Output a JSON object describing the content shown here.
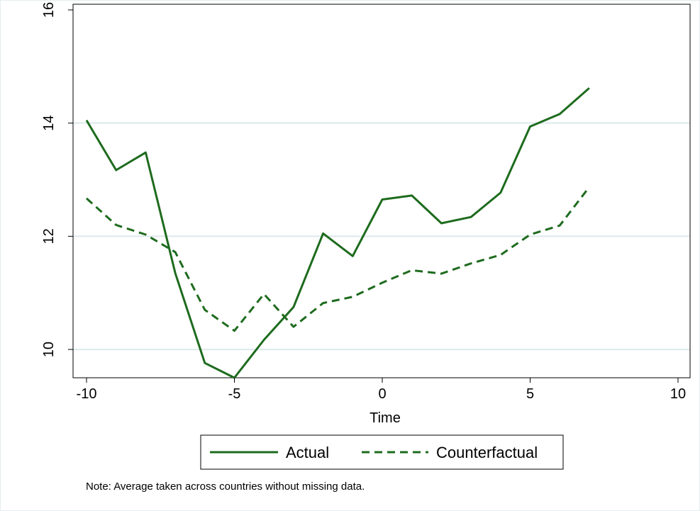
{
  "chart_data": {
    "type": "line",
    "title": "",
    "xlabel": "Time",
    "ylabel": "",
    "xlim": [
      -10,
      10
    ],
    "ylim": [
      9.5,
      16.1
    ],
    "x_ticks": [
      -10,
      -5,
      0,
      5,
      10
    ],
    "y_ticks": [
      10,
      12,
      14,
      16
    ],
    "x_tick_labels": [
      "-10",
      "-5",
      "0",
      "5",
      "10"
    ],
    "y_tick_labels": [
      "10",
      "12",
      "14",
      "16"
    ],
    "grid": true,
    "grid_color": "#dde9ec",
    "legend_position": "bottom",
    "line_color": "#1e6b1e",
    "x": [
      -10,
      -9,
      -8,
      -7,
      -6,
      -5,
      -4,
      -3,
      -2,
      -1,
      0,
      1,
      2,
      3,
      4,
      5,
      6,
      7
    ],
    "series": [
      {
        "name": "Actual",
        "style": "solid",
        "values": [
          14.05,
          13.17,
          13.48,
          11.35,
          9.76,
          9.5,
          10.17,
          10.75,
          12.05,
          11.65,
          12.65,
          12.72,
          12.23,
          12.34,
          12.77,
          13.94,
          14.16,
          14.62
        ]
      },
      {
        "name": "Counterfactual",
        "style": "dashed",
        "values": [
          12.67,
          12.2,
          12.03,
          11.72,
          10.7,
          10.33,
          10.98,
          10.4,
          10.82,
          10.93,
          11.18,
          11.4,
          11.34,
          11.52,
          11.67,
          12.03,
          12.19,
          12.87
        ]
      }
    ],
    "note": "Note: Average taken across countries without missing data."
  }
}
